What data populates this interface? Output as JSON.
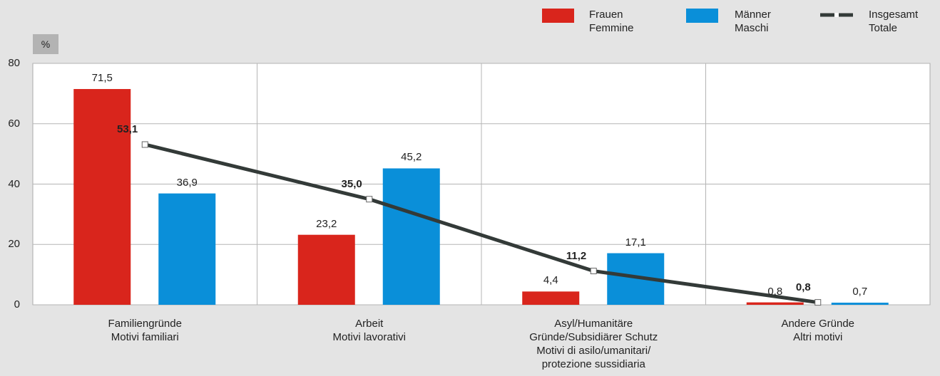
{
  "chart_data": {
    "type": "bar",
    "y_label": "%",
    "categories": [
      "Familiengründe\nMotivi familiari",
      "Arbeit\nMotivi lavorativi",
      "Asyl/Humanitäre\nGründe/Subsidiärer Schutz\nMotivi di asilo/umanitari/\nprotezione sussidiaria",
      "Andere Gründe\nAltri motivi"
    ],
    "series": [
      {
        "name": "Frauen\nFemmine",
        "color": "#d9251c",
        "values": [
          71.5,
          23.2,
          4.4,
          0.8
        ],
        "value_labels": [
          "71,5",
          "23,2",
          "4,4",
          "0,8"
        ]
      },
      {
        "name": "Männer\nMaschi",
        "color": "#0a8fd9",
        "values": [
          36.9,
          45.2,
          17.1,
          0.7
        ],
        "value_labels": [
          "36,9",
          "45,2",
          "17,1",
          "0,7"
        ]
      },
      {
        "name": "Insgesamt\nTotale",
        "type": "line",
        "color": "#333a38",
        "values": [
          53.1,
          35.0,
          11.2,
          0.8
        ],
        "value_labels": [
          "53,1",
          "35,0",
          "11,2",
          "0,8"
        ]
      }
    ],
    "ylim": [
      0,
      80
    ],
    "yticks": [
      0,
      20,
      40,
      60,
      80
    ],
    "grid": true
  }
}
